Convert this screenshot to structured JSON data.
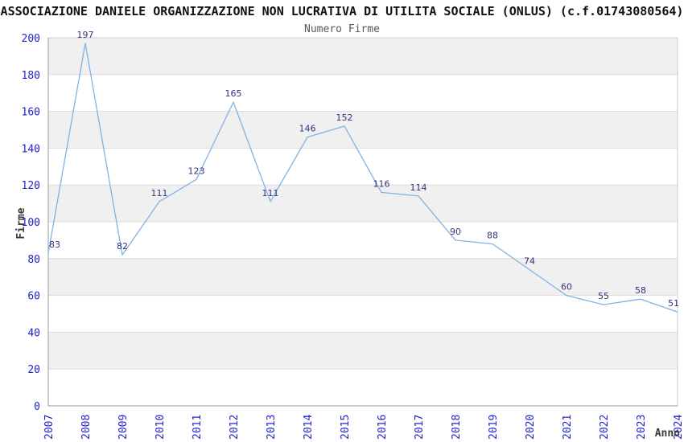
{
  "chart_data": {
    "type": "line",
    "title": "ASSOCIAZIONE DANIELE ORGANIZZAZIONE NON LUCRATIVA DI UTILITA SOCIALE (ONLUS) (c.f.01743080564)",
    "subtitle": "Numero Firme",
    "xlabel": "Anno",
    "ylabel": "Firme",
    "categories": [
      "2007",
      "2008",
      "2009",
      "2010",
      "2011",
      "2012",
      "2013",
      "2014",
      "2015",
      "2016",
      "2017",
      "2018",
      "2019",
      "2020",
      "2021",
      "2022",
      "2023",
      "2024"
    ],
    "values": [
      83,
      197,
      82,
      111,
      123,
      165,
      111,
      146,
      152,
      116,
      114,
      90,
      88,
      74,
      60,
      55,
      58,
      51
    ],
    "ylim": [
      0,
      200
    ],
    "y_tick_step": 20,
    "y_tick_labels": [
      "0",
      "20",
      "40",
      "60",
      "80",
      "100",
      "120",
      "140",
      "160",
      "180",
      "200"
    ],
    "legend_position": "none",
    "grid": "horizontal-bands",
    "colors": {
      "line": "#7fb2e5",
      "tick_label": "#2222cc",
      "value_label": "#31317e",
      "band_fill": "#f0f0f0",
      "gridline": "#dcdcdc",
      "plot_border": "#cccccc",
      "axis_line": "#9a9a9a",
      "title": "#111111",
      "subtitle": "#585858",
      "axis_title": "#3a3a3a"
    }
  }
}
